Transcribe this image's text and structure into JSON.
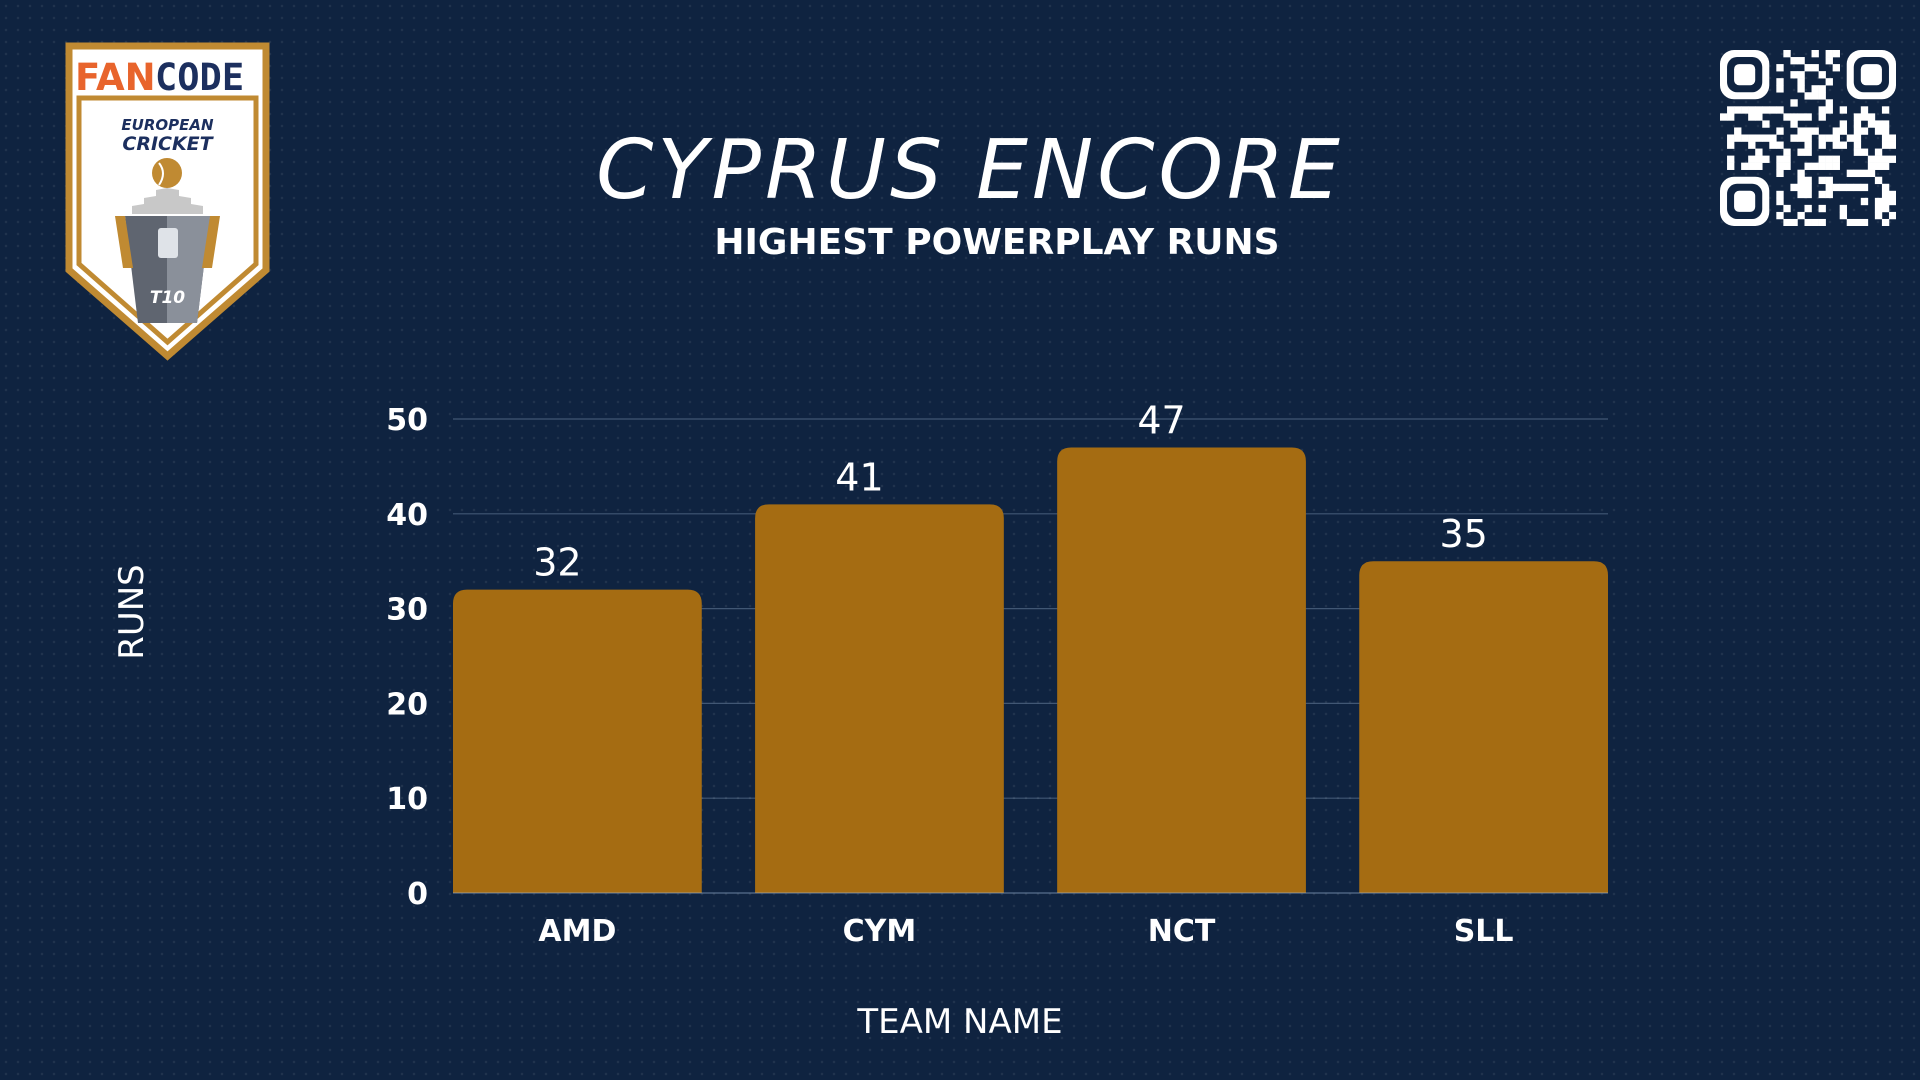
{
  "header": {
    "logo": {
      "brand_left": "FAN",
      "brand_right": "CODE",
      "line1": "EUROPEAN",
      "line2": "CRICKET",
      "format": "T10"
    },
    "title": "CYPRUS ENCORE",
    "qr_icon": "qr-code-icon"
  },
  "colors": {
    "background": "#0f2340",
    "bar": "#a56c12",
    "logo_gold": "#c08a32",
    "brand_orange": "#e8642c",
    "brand_navy": "#1c2f5e"
  },
  "chart_data": {
    "type": "bar",
    "title": "HIGHEST POWERPLAY RUNS",
    "xlabel": "TEAM NAME",
    "ylabel": "RUNS",
    "categories": [
      "AMD",
      "CYM",
      "NCT",
      "SLL"
    ],
    "values": [
      32,
      41,
      47,
      35
    ],
    "data_labels": [
      "32",
      "41",
      "47",
      "35"
    ],
    "ylim": [
      0,
      50
    ],
    "yticks": [
      0,
      10,
      20,
      30,
      40,
      50
    ],
    "grid": true,
    "legend": "none"
  }
}
